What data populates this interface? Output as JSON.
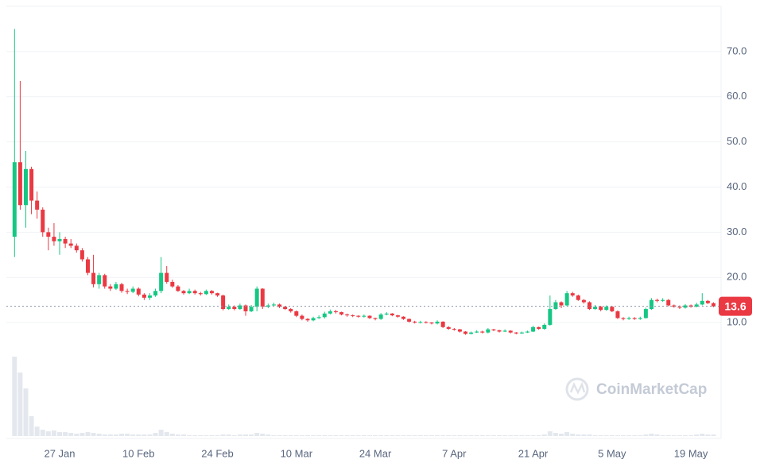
{
  "chart_data": {
    "type": "candlestick",
    "categories": [
      null,
      null,
      null,
      null,
      null,
      null,
      null,
      null,
      "27 Jan",
      null,
      null,
      null,
      null,
      null,
      null,
      null,
      null,
      null,
      null,
      null,
      null,
      null,
      "10 Feb",
      null,
      null,
      null,
      null,
      null,
      null,
      null,
      null,
      null,
      null,
      null,
      null,
      null,
      "24 Feb",
      null,
      null,
      null,
      null,
      null,
      null,
      null,
      null,
      null,
      null,
      null,
      null,
      null,
      "10 Mar",
      null,
      null,
      null,
      null,
      null,
      null,
      null,
      null,
      null,
      null,
      null,
      null,
      null,
      "24 Mar",
      null,
      null,
      null,
      null,
      null,
      null,
      null,
      null,
      null,
      null,
      null,
      null,
      null,
      "7 Apr",
      null,
      null,
      null,
      null,
      null,
      null,
      null,
      null,
      null,
      null,
      null,
      null,
      null,
      "21 Apr",
      null,
      null,
      null,
      null,
      null,
      null,
      null,
      null,
      null,
      null,
      null,
      null,
      null,
      "5 May",
      null,
      null,
      null,
      null,
      null,
      null,
      null,
      null,
      null,
      null,
      null,
      null,
      null,
      "19 May",
      null,
      null,
      null,
      null
    ],
    "open": [
      29,
      45.5,
      36,
      44,
      37,
      35,
      30,
      29,
      28,
      28.5,
      27.5,
      27,
      26,
      24,
      21,
      18.5,
      20.5,
      18,
      17.5,
      18.5,
      17,
      16.8,
      17.5,
      16.2,
      15.5,
      16,
      17,
      21,
      19,
      18,
      17,
      16.5,
      17,
      16.5,
      16.3,
      17,
      16.5,
      16,
      13,
      13.5,
      13,
      13.8,
      12.5,
      13.5,
      17.5,
      13.5,
      13.8,
      14,
      13.5,
      13,
      12.5,
      11.5,
      10.8,
      10.5,
      11,
      11.2,
      12,
      12.5,
      12.3,
      11.8,
      11.6,
      11.5,
      11.3,
      11.5,
      11,
      10.8,
      11.8,
      12,
      11.6,
      11.3,
      10.8,
      10.2,
      10,
      10.1,
      10,
      9.8,
      10.2,
      9,
      8.6,
      8.5,
      8,
      7.5,
      7.8,
      8,
      7.8,
      8.5,
      8.3,
      8,
      8.2,
      7.8,
      7.6,
      7.8,
      8,
      9,
      8.6,
      9.5,
      13,
      14.5,
      13.8,
      16.5,
      16,
      15,
      14.5,
      13,
      13.5,
      12.8,
      13.5,
      12.5,
      11,
      10.8,
      11,
      10.8,
      11,
      13,
      15,
      14.8,
      15,
      13.8,
      13.5,
      13.3,
      13.8,
      13.5,
      14,
      14.8,
      14.3
    ],
    "high": [
      75,
      63.5,
      48,
      44.5,
      39,
      35.5,
      31,
      32,
      30,
      29,
      28.5,
      27.5,
      26.5,
      24.5,
      25,
      21,
      20.8,
      18.5,
      19,
      18.8,
      17.5,
      18,
      17.8,
      16.5,
      16.5,
      17.5,
      24.5,
      22.5,
      19.5,
      18.3,
      17.2,
      17.5,
      17.3,
      16.8,
      17.3,
      17.2,
      16.6,
      16.2,
      14,
      13.8,
      14.2,
      14,
      13.9,
      18,
      17.6,
      14.2,
      14.4,
      14.2,
      13.7,
      13.2,
      12.7,
      11.8,
      11,
      11.3,
      11.6,
      12.4,
      12.9,
      12.8,
      12.4,
      12,
      11.8,
      11.6,
      11.8,
      11.6,
      11.1,
      12.1,
      12.3,
      12.1,
      11.7,
      11.4,
      10.9,
      10.4,
      10.4,
      10.3,
      10.1,
      10.5,
      10.3,
      9.2,
      8.8,
      8.6,
      8.1,
      8,
      8.3,
      8.2,
      8.8,
      8.6,
      8.4,
      8.5,
      8.3,
      7.9,
      8,
      8.2,
      9.3,
      9.1,
      9.8,
      16,
      15,
      14.7,
      17,
      16.8,
      16.2,
      15.2,
      14.7,
      13.9,
      13.7,
      13.8,
      13.7,
      12.7,
      11.2,
      11.3,
      11.2,
      11.3,
      13.3,
      15.4,
      15.3,
      15.4,
      15.2,
      14,
      13.8,
      14.1,
      14,
      14.4,
      16.5,
      15,
      14.5
    ],
    "low": [
      24.5,
      35,
      31,
      34,
      33,
      29,
      26,
      27,
      25,
      26.5,
      26.5,
      25.5,
      23.5,
      20.5,
      17.8,
      17.5,
      17.5,
      17,
      17.2,
      16.6,
      16.3,
      16.5,
      15.8,
      15,
      15,
      15.7,
      16.5,
      18.6,
      17.7,
      16.8,
      16.2,
      16.3,
      16.2,
      16,
      16.1,
      16.2,
      15.7,
      12.7,
      12.8,
      12.7,
      12.8,
      11.5,
      12.3,
      12.5,
      13,
      13.2,
      13.6,
      13.2,
      12.8,
      12.2,
      11.2,
      10.5,
      10.2,
      10.3,
      10.8,
      10.9,
      11.8,
      12,
      11.6,
      11.3,
      11.2,
      11.1,
      11.1,
      10.8,
      10.5,
      10.6,
      11.6,
      11.4,
      11.1,
      10.6,
      10,
      9.8,
      9.8,
      9.8,
      9.6,
      9.6,
      8.8,
      8.4,
      8.2,
      7.8,
      7.3,
      7.4,
      7.7,
      7.6,
      7.6,
      8.1,
      7.8,
      7.9,
      7.6,
      7.4,
      7.5,
      7.7,
      7.9,
      8.4,
      8.4,
      9.3,
      12.8,
      13.2,
      13.6,
      15.7,
      14.8,
      14.2,
      12.8,
      12.8,
      12.5,
      12.6,
      12.3,
      10.8,
      10.5,
      10.6,
      10.6,
      10.6,
      10.9,
      12.8,
      14.5,
      14.6,
      13.6,
      13.3,
      13,
      13.1,
      13.3,
      13.4,
      13.8,
      14.1,
      13.4
    ],
    "close": [
      45.5,
      36,
      44,
      37,
      35,
      30,
      29,
      28,
      28.5,
      27.5,
      27,
      26,
      24,
      21,
      18.5,
      20.5,
      18,
      17.5,
      18.5,
      17,
      16.8,
      17.5,
      16.2,
      15.5,
      16,
      17,
      21,
      19,
      18,
      17,
      16.5,
      17,
      16.5,
      16.3,
      17,
      16.5,
      16,
      13,
      13.5,
      13,
      13.8,
      12.5,
      13.5,
      17.5,
      13.5,
      13.8,
      14,
      13.5,
      13,
      12.5,
      11.5,
      10.8,
      10.5,
      11,
      11.2,
      12,
      12.5,
      12.3,
      11.8,
      11.6,
      11.5,
      11.3,
      11.5,
      11,
      10.8,
      11.8,
      12,
      11.6,
      11.3,
      10.8,
      10.2,
      10,
      10.1,
      10,
      9.8,
      10.2,
      9,
      8.6,
      8.5,
      8,
      7.5,
      7.8,
      8,
      7.8,
      8.5,
      8.3,
      8,
      8.2,
      7.8,
      7.6,
      7.8,
      8,
      9,
      8.6,
      9.5,
      13,
      14.5,
      13.8,
      16.5,
      16,
      15,
      14.5,
      13,
      13.5,
      12.8,
      13.5,
      12.5,
      11,
      10.8,
      11,
      10.8,
      11,
      13,
      15,
      14.8,
      15,
      13.8,
      13.5,
      13.3,
      13.8,
      13.5,
      14,
      14.8,
      14.3,
      13.6
    ],
    "volume": [
      100,
      80,
      60,
      25,
      12,
      8,
      6,
      7,
      5,
      5,
      4,
      3,
      4,
      5,
      4,
      3,
      2,
      2,
      2,
      3,
      3,
      2,
      2,
      2,
      2,
      4,
      8,
      5,
      3,
      2,
      2,
      1,
      1,
      1,
      1,
      1,
      1,
      2,
      2,
      1,
      2,
      2,
      2,
      4,
      3,
      2,
      1,
      1,
      1,
      1,
      1,
      1,
      1,
      1,
      1,
      1,
      1,
      1,
      1,
      1,
      1,
      1,
      1,
      1,
      1,
      1,
      1,
      1,
      1,
      1,
      1,
      1,
      1,
      1,
      1,
      1,
      1,
      1,
      1,
      1,
      1,
      1,
      1,
      1,
      1,
      1,
      1,
      1,
      1,
      1,
      1,
      1,
      1,
      1,
      2,
      6,
      4,
      3,
      5,
      3,
      2,
      2,
      2,
      1,
      1,
      1,
      1,
      1,
      1,
      1,
      1,
      1,
      2,
      3,
      2,
      1,
      1,
      1,
      1,
      1,
      1,
      2,
      3,
      2,
      2
    ],
    "up_color": "#16c784",
    "down_color": "#ea3943",
    "ylim": [
      0,
      80
    ],
    "yticks": [
      {
        "value": 10,
        "label": "10.0"
      },
      {
        "value": 20,
        "label": "20.0"
      },
      {
        "value": 30,
        "label": "30.0"
      },
      {
        "value": 40,
        "label": "40.0"
      },
      {
        "value": 50,
        "label": "50.0"
      },
      {
        "value": 60,
        "label": "60.0"
      },
      {
        "value": 70,
        "label": "70.0"
      }
    ],
    "grid": true,
    "current_price": 13.6,
    "watermark": "CoinMarketCap"
  }
}
